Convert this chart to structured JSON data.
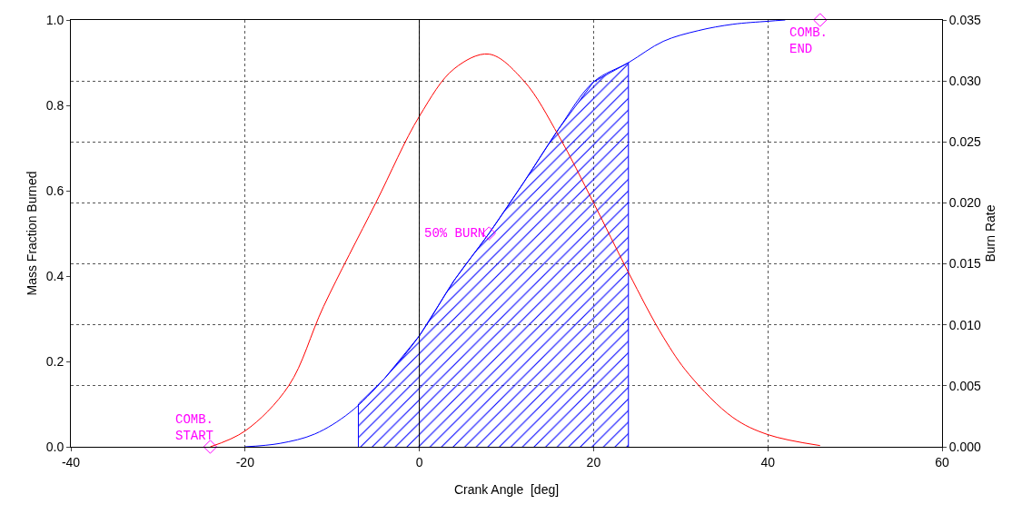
{
  "chart_data": {
    "type": "line",
    "xlabel": "Crank Angle  [deg]",
    "ylabel": "Mass Fraction Burned",
    "y2label": "Burn Rate",
    "xlim": [
      -40,
      60
    ],
    "xticks": [
      -40,
      -20,
      0,
      20,
      40,
      60
    ],
    "ylim": [
      0,
      1
    ],
    "yticks": [
      {
        "value": 0,
        "label": "0.0"
      },
      {
        "value": 0.2,
        "label": "0.2"
      },
      {
        "value": 0.4,
        "label": "0.4"
      },
      {
        "value": 0.6,
        "label": "0.6"
      },
      {
        "value": 0.8,
        "label": "0.8"
      },
      {
        "value": 1,
        "label": "1.0"
      }
    ],
    "y2lim": [
      0,
      0.035
    ],
    "y2ticks": [
      {
        "value": 0,
        "label": "0.000"
      },
      {
        "value": 0.005,
        "label": "0.005"
      },
      {
        "value": 0.01,
        "label": "0.010"
      },
      {
        "value": 0.015,
        "label": "0.015"
      },
      {
        "value": 0.02,
        "label": "0.020"
      },
      {
        "value": 0.025,
        "label": "0.025"
      },
      {
        "value": 0.03,
        "label": "0.030"
      },
      {
        "value": 0.035,
        "label": "0.035"
      }
    ],
    "grid": true,
    "line_style": "solid",
    "marker": "none",
    "ref_lines": [
      {
        "axis": "x",
        "value": 0,
        "color": "#000000",
        "line_style": "solid"
      }
    ],
    "series": [
      {
        "type": "area",
        "color": "#0000ff",
        "x": [
          -7,
          -4,
          0,
          4,
          8,
          12,
          16,
          20,
          24
        ],
        "values": [
          0.1,
          0.16,
          0.26,
          0.39,
          0.5,
          0.62,
          0.745,
          0.855,
          0.9
        ]
      },
      {
        "color": "#0000ff",
        "x": [
          -20,
          -16,
          -12,
          -8,
          -4,
          0,
          4,
          8,
          12,
          16,
          20,
          24,
          28,
          32,
          36,
          40,
          42
        ],
        "values": [
          0,
          0.008,
          0.03,
          0.08,
          0.16,
          0.26,
          0.39,
          0.5,
          0.62,
          0.745,
          0.855,
          0.9,
          0.95,
          0.975,
          0.99,
          0.997,
          1.0
        ]
      },
      {
        "color": "#ff0000",
        "axis": "y2",
        "x": [
          -24,
          -20,
          -15,
          -11,
          -5,
          0,
          4,
          8,
          12,
          16,
          20,
          24,
          28,
          31,
          36,
          40,
          46
        ],
        "values": [
          0,
          0.0013,
          0.005,
          0.0115,
          0.02,
          0.0271,
          0.031,
          0.0322,
          0.03,
          0.0255,
          0.02,
          0.0143,
          0.009,
          0.0059,
          0.0024,
          0.001,
          0.0001
        ]
      },
      {
        "type": "scatter",
        "color": "#ff00ff",
        "marker": "diamond",
        "x": [
          -24,
          8,
          46
        ],
        "values": [
          0,
          0.5,
          1.0
        ]
      }
    ],
    "annotations": [
      {
        "text": "COMB.\nSTART",
        "x": -24,
        "y": 0
      },
      {
        "text": "50% BURN",
        "x": 8,
        "y": 0.5
      },
      {
        "text": "COMB.\nEND",
        "x": 46,
        "y": 1.0
      }
    ]
  }
}
